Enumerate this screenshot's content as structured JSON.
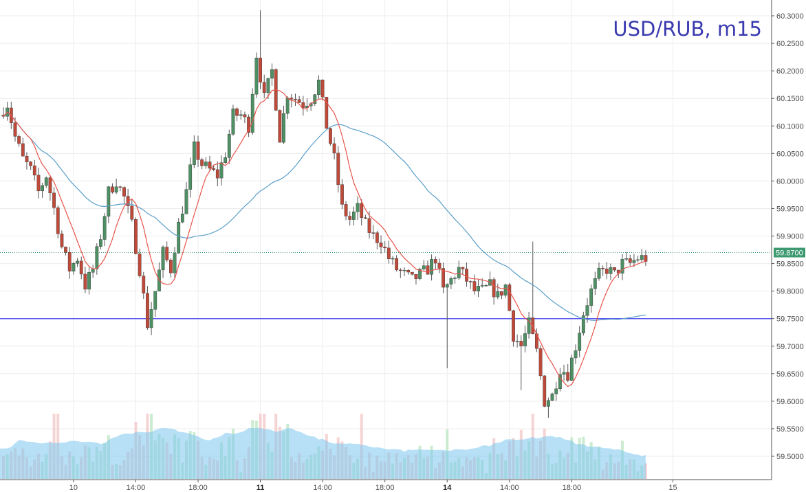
{
  "chart_data": {
    "type": "candlestick",
    "title": "USD/RUB,  m15",
    "ylim": [
      59.49,
      60.31
    ],
    "y_ticks": [
      "60.3000",
      "60.2500",
      "60.2000",
      "60.1500",
      "60.1000",
      "60.0500",
      "60.0000",
      "59.9500",
      "59.9000",
      "59.8500",
      "59.8000",
      "59.7500",
      "59.7000",
      "59.6500",
      "59.6000",
      "59.5500",
      "59.5000"
    ],
    "x_ticks": [
      {
        "label": "10",
        "bold": false,
        "t": 18
      },
      {
        "label": "14:00",
        "bold": false,
        "t": 34
      },
      {
        "label": "18:00",
        "bold": false,
        "t": 50
      },
      {
        "label": "11",
        "bold": true,
        "t": 66
      },
      {
        "label": "14:00",
        "bold": false,
        "t": 82
      },
      {
        "label": "18:00",
        "bold": false,
        "t": 98
      },
      {
        "label": "14",
        "bold": true,
        "t": 114
      },
      {
        "label": "14:00",
        "bold": false,
        "t": 130
      },
      {
        "label": "18:00",
        "bold": false,
        "t": 146
      },
      {
        "label": "15",
        "bold": false,
        "t": 172
      }
    ],
    "horizontal_line": {
      "value": 59.75,
      "color": "#5b5bf0"
    },
    "current_price": {
      "value": 59.87,
      "label": "59.8700",
      "color": "#3d9970"
    },
    "colors": {
      "up": "#4e8f63",
      "down": "#bf4a3a",
      "up_wick": "#555555",
      "fast_ma": "#e8534a",
      "slow_ma": "#5a9ec9",
      "volume_area": "#7cc6ee"
    },
    "anchors": [
      [
        0,
        60.12
      ],
      [
        2,
        60.14
      ],
      [
        4,
        60.08
      ],
      [
        6,
        60.04
      ],
      [
        8,
        60.02
      ],
      [
        10,
        59.98
      ],
      [
        12,
        60.01
      ],
      [
        14,
        59.95
      ],
      [
        16,
        59.88
      ],
      [
        18,
        59.84
      ],
      [
        20,
        59.86
      ],
      [
        22,
        59.81
      ],
      [
        24,
        59.84
      ],
      [
        26,
        59.9
      ],
      [
        28,
        59.98
      ],
      [
        30,
        60.0
      ],
      [
        32,
        59.97
      ],
      [
        34,
        59.92
      ],
      [
        36,
        59.84
      ],
      [
        38,
        59.74
      ],
      [
        40,
        59.8
      ],
      [
        42,
        59.87
      ],
      [
        44,
        59.84
      ],
      [
        46,
        59.92
      ],
      [
        48,
        59.98
      ],
      [
        50,
        60.06
      ],
      [
        52,
        60.03
      ],
      [
        54,
        60.02
      ],
      [
        56,
        60.01
      ],
      [
        58,
        60.05
      ],
      [
        60,
        60.12
      ],
      [
        62,
        60.12
      ],
      [
        64,
        60.1
      ],
      [
        66,
        60.23
      ],
      [
        68,
        60.15
      ],
      [
        70,
        60.2
      ],
      [
        72,
        60.08
      ],
      [
        74,
        60.16
      ],
      [
        76,
        60.15
      ],
      [
        78,
        60.14
      ],
      [
        80,
        60.15
      ],
      [
        82,
        60.18
      ],
      [
        84,
        60.1
      ],
      [
        86,
        60.04
      ],
      [
        88,
        59.95
      ],
      [
        90,
        59.93
      ],
      [
        92,
        59.95
      ],
      [
        94,
        59.92
      ],
      [
        96,
        59.9
      ],
      [
        98,
        59.89
      ],
      [
        100,
        59.86
      ],
      [
        102,
        59.84
      ],
      [
        104,
        59.83
      ],
      [
        106,
        59.82
      ],
      [
        108,
        59.83
      ],
      [
        110,
        59.84
      ],
      [
        112,
        59.86
      ],
      [
        114,
        59.8
      ],
      [
        116,
        59.82
      ],
      [
        118,
        59.84
      ],
      [
        120,
        59.82
      ],
      [
        122,
        59.8
      ],
      [
        124,
        59.8
      ],
      [
        126,
        59.81
      ],
      [
        128,
        59.79
      ],
      [
        130,
        59.81
      ],
      [
        132,
        59.72
      ],
      [
        134,
        59.7
      ],
      [
        136,
        59.74
      ],
      [
        138,
        59.69
      ],
      [
        140,
        59.6
      ],
      [
        142,
        59.61
      ],
      [
        144,
        59.66
      ],
      [
        146,
        59.65
      ],
      [
        148,
        59.7
      ],
      [
        150,
        59.76
      ],
      [
        152,
        59.8
      ],
      [
        154,
        59.83
      ],
      [
        156,
        59.84
      ],
      [
        158,
        59.83
      ],
      [
        160,
        59.85
      ],
      [
        162,
        59.85
      ],
      [
        164,
        59.86
      ]
    ],
    "price_x_ticks": "x axis in 15-minute bar index",
    "volume_bars": true
  }
}
